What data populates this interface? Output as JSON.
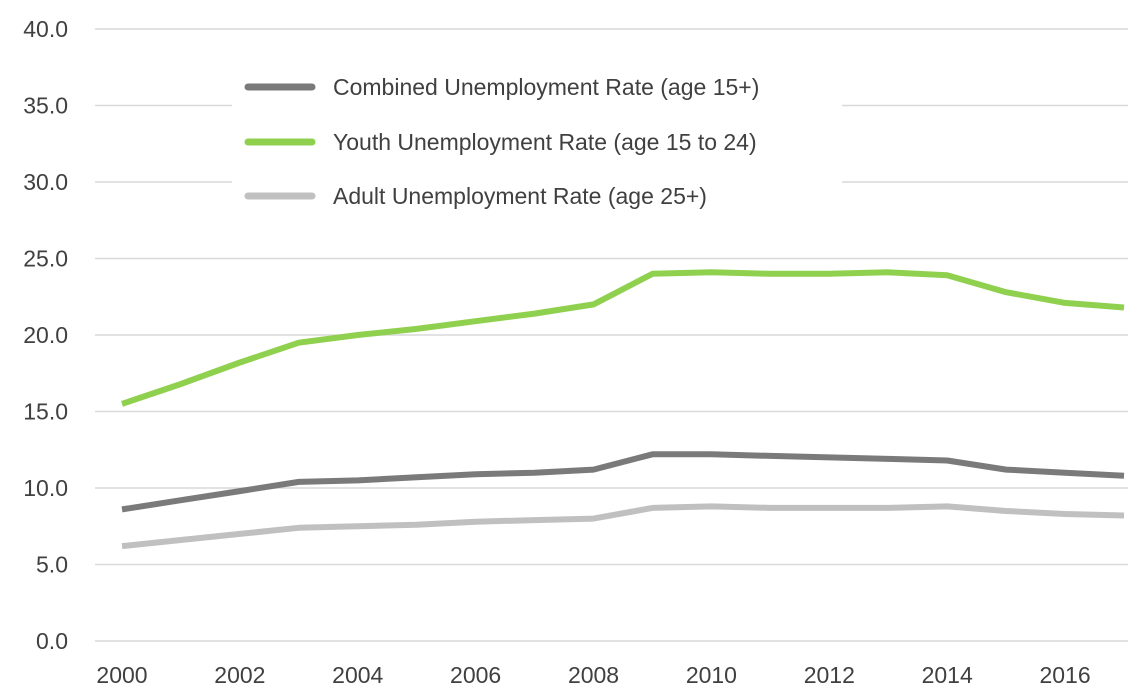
{
  "chart_data": {
    "type": "line",
    "title": "",
    "xlabel": "",
    "ylabel": "",
    "x": [
      2000,
      2001,
      2002,
      2003,
      2004,
      2005,
      2006,
      2007,
      2008,
      2009,
      2010,
      2011,
      2012,
      2013,
      2014,
      2015,
      2016,
      2017
    ],
    "xlim": [
      2000,
      2017
    ],
    "x_ticks": [
      "2000",
      "2002",
      "2004",
      "2006",
      "2008",
      "2010",
      "2012",
      "2014",
      "2016"
    ],
    "ylim": [
      0,
      40
    ],
    "y_ticks": [
      "0.0",
      "5.0",
      "10.0",
      "15.0",
      "20.0",
      "25.0",
      "30.0",
      "35.0",
      "40.0"
    ],
    "grid": true,
    "legend_position": "top-left",
    "series": [
      {
        "name": "Combined Unemployment Rate (age 15+)",
        "color": "#7a7a7a",
        "values": [
          8.6,
          9.2,
          9.8,
          10.4,
          10.5,
          10.7,
          10.9,
          11.0,
          11.2,
          12.2,
          12.2,
          12.1,
          12.0,
          11.9,
          11.8,
          11.2,
          11.0,
          10.8
        ]
      },
      {
        "name": "Youth Unemployment Rate (age 15 to 24)",
        "color": "#8fd14f",
        "values": [
          15.5,
          16.8,
          18.2,
          19.5,
          20.0,
          20.4,
          20.9,
          21.4,
          22.0,
          24.0,
          24.1,
          24.0,
          24.0,
          24.1,
          23.9,
          22.8,
          22.1,
          21.8
        ]
      },
      {
        "name": "Adult Unemployment Rate (age 25+)",
        "color": "#c0c0c0",
        "values": [
          6.2,
          6.6,
          7.0,
          7.4,
          7.5,
          7.6,
          7.8,
          7.9,
          8.0,
          8.7,
          8.8,
          8.7,
          8.7,
          8.7,
          8.8,
          8.5,
          8.3,
          8.2
        ]
      }
    ]
  }
}
